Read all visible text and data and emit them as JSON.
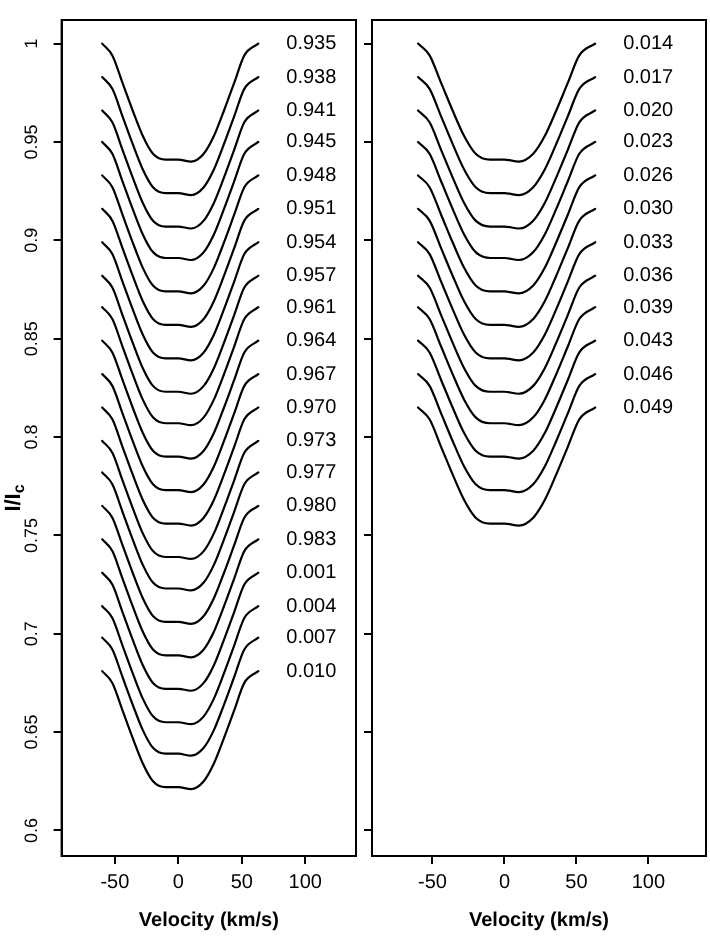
{
  "chart_data": [
    {
      "type": "line",
      "xlabel": "Velocity (km/s)",
      "ylabel": "I/I$_{c}$",
      "xlim": [
        -92,
        140
      ],
      "xticks": [
        -50,
        0,
        50,
        100
      ],
      "ylim": [
        0.587,
        1.012
      ],
      "yticks": [
        0.6,
        0.65,
        0.7,
        0.75,
        0.8,
        0.85,
        0.9,
        0.95,
        1
      ],
      "grid": false,
      "legend": "right",
      "marker": "none",
      "line_style": "solid",
      "x": [
        -60,
        -52,
        -44,
        -36,
        -28,
        -20,
        -10,
        0,
        10,
        20,
        28,
        36,
        44,
        52,
        63
      ],
      "series": [
        {
          "name": "0.935",
          "color": "#000000",
          "values": [
            1,
            0.994,
            0.98,
            0.966,
            0.953,
            0.944,
            0.941,
            0.941,
            0.94,
            0.944,
            0.953,
            0.966,
            0.98,
            0.994,
            1
          ]
        },
        {
          "name": "0.938",
          "color": "#000000",
          "values": [
            0.983,
            0.977,
            0.963,
            0.949,
            0.936,
            0.927,
            0.924,
            0.924,
            0.923,
            0.927,
            0.936,
            0.949,
            0.963,
            0.977,
            0.983
          ]
        },
        {
          "name": "0.941",
          "color": "#000000",
          "values": [
            0.966,
            0.96,
            0.946,
            0.932,
            0.919,
            0.91,
            0.907,
            0.907,
            0.906,
            0.91,
            0.919,
            0.932,
            0.946,
            0.96,
            0.966
          ]
        },
        {
          "name": "0.945",
          "color": "#000000",
          "values": [
            0.95,
            0.944,
            0.93,
            0.916,
            0.903,
            0.894,
            0.891,
            0.891,
            0.89,
            0.894,
            0.903,
            0.916,
            0.93,
            0.944,
            0.95
          ]
        },
        {
          "name": "0.948",
          "color": "#000000",
          "values": [
            0.933,
            0.927,
            0.913,
            0.899,
            0.886,
            0.877,
            0.874,
            0.874,
            0.873,
            0.877,
            0.886,
            0.899,
            0.913,
            0.927,
            0.933
          ]
        },
        {
          "name": "0.951",
          "color": "#000000",
          "values": [
            0.916,
            0.91,
            0.896,
            0.882,
            0.869,
            0.86,
            0.857,
            0.857,
            0.856,
            0.86,
            0.869,
            0.882,
            0.896,
            0.91,
            0.916
          ]
        },
        {
          "name": "0.954",
          "color": "#000000",
          "values": [
            0.899,
            0.893,
            0.879,
            0.865,
            0.852,
            0.843,
            0.84,
            0.84,
            0.839,
            0.843,
            0.852,
            0.865,
            0.879,
            0.893,
            0.899
          ]
        },
        {
          "name": "0.957",
          "color": "#000000",
          "values": [
            0.882,
            0.876,
            0.862,
            0.848,
            0.835,
            0.826,
            0.823,
            0.823,
            0.822,
            0.826,
            0.835,
            0.848,
            0.862,
            0.876,
            0.882
          ]
        },
        {
          "name": "0.961",
          "color": "#000000",
          "values": [
            0.866,
            0.86,
            0.846,
            0.832,
            0.819,
            0.81,
            0.807,
            0.807,
            0.806,
            0.81,
            0.819,
            0.832,
            0.846,
            0.86,
            0.866
          ]
        },
        {
          "name": "0.964",
          "color": "#000000",
          "values": [
            0.849,
            0.843,
            0.829,
            0.815,
            0.802,
            0.793,
            0.79,
            0.79,
            0.789,
            0.793,
            0.802,
            0.815,
            0.829,
            0.843,
            0.849
          ]
        },
        {
          "name": "0.967",
          "color": "#000000",
          "values": [
            0.832,
            0.826,
            0.812,
            0.798,
            0.785,
            0.776,
            0.773,
            0.773,
            0.772,
            0.776,
            0.785,
            0.798,
            0.812,
            0.826,
            0.832
          ]
        },
        {
          "name": "0.970",
          "color": "#000000",
          "values": [
            0.815,
            0.809,
            0.795,
            0.781,
            0.768,
            0.759,
            0.756,
            0.756,
            0.755,
            0.759,
            0.768,
            0.781,
            0.795,
            0.809,
            0.815
          ]
        },
        {
          "name": "0.973",
          "color": "#000000",
          "values": [
            0.798,
            0.792,
            0.778,
            0.764,
            0.751,
            0.742,
            0.739,
            0.739,
            0.738,
            0.742,
            0.751,
            0.764,
            0.778,
            0.792,
            0.798
          ]
        },
        {
          "name": "0.977",
          "color": "#000000",
          "values": [
            0.782,
            0.776,
            0.762,
            0.748,
            0.735,
            0.726,
            0.723,
            0.723,
            0.722,
            0.726,
            0.735,
            0.748,
            0.762,
            0.776,
            0.782
          ]
        },
        {
          "name": "0.980",
          "color": "#000000",
          "values": [
            0.765,
            0.759,
            0.745,
            0.731,
            0.718,
            0.709,
            0.706,
            0.706,
            0.705,
            0.709,
            0.718,
            0.731,
            0.745,
            0.759,
            0.765
          ]
        },
        {
          "name": "0.983",
          "color": "#000000",
          "values": [
            0.748,
            0.742,
            0.728,
            0.714,
            0.701,
            0.692,
            0.689,
            0.689,
            0.688,
            0.692,
            0.701,
            0.714,
            0.728,
            0.742,
            0.748
          ]
        },
        {
          "name": "0.001",
          "color": "#000000",
          "values": [
            0.731,
            0.725,
            0.711,
            0.697,
            0.684,
            0.675,
            0.672,
            0.672,
            0.671,
            0.675,
            0.684,
            0.697,
            0.711,
            0.725,
            0.731
          ]
        },
        {
          "name": "0.004",
          "color": "#000000",
          "values": [
            0.714,
            0.708,
            0.694,
            0.68,
            0.667,
            0.658,
            0.655,
            0.655,
            0.654,
            0.658,
            0.667,
            0.68,
            0.694,
            0.708,
            0.714
          ]
        },
        {
          "name": "0.007",
          "color": "#000000",
          "values": [
            0.698,
            0.692,
            0.678,
            0.664,
            0.651,
            0.642,
            0.639,
            0.639,
            0.638,
            0.642,
            0.651,
            0.664,
            0.678,
            0.692,
            0.698
          ]
        },
        {
          "name": "0.010",
          "color": "#000000",
          "values": [
            0.681,
            0.675,
            0.661,
            0.647,
            0.634,
            0.625,
            0.622,
            0.622,
            0.621,
            0.625,
            0.634,
            0.647,
            0.661,
            0.675,
            0.681
          ]
        }
      ]
    },
    {
      "type": "line",
      "xlabel": "Velocity (km/s)",
      "xlim": [
        -92,
        140
      ],
      "xticks": [
        -50,
        0,
        50,
        100
      ],
      "ylim": [
        0.587,
        1.012
      ],
      "yticks": [
        0.6,
        0.65,
        0.7,
        0.75,
        0.8,
        0.85,
        0.9,
        0.95,
        1
      ],
      "tick_labels": "x",
      "grid": false,
      "legend": "right",
      "marker": "none",
      "line_style": "solid",
      "x": [
        -60,
        -52,
        -44,
        -36,
        -28,
        -20,
        -10,
        0,
        10,
        20,
        28,
        36,
        44,
        52,
        63
      ],
      "series": [
        {
          "name": "0.014",
          "color": "#000000",
          "values": [
            1,
            0.994,
            0.98,
            0.966,
            0.953,
            0.944,
            0.941,
            0.941,
            0.94,
            0.944,
            0.953,
            0.966,
            0.98,
            0.994,
            1
          ]
        },
        {
          "name": "0.017",
          "color": "#000000",
          "values": [
            0.983,
            0.977,
            0.963,
            0.949,
            0.936,
            0.927,
            0.924,
            0.924,
            0.923,
            0.927,
            0.936,
            0.949,
            0.963,
            0.977,
            0.983
          ]
        },
        {
          "name": "0.020",
          "color": "#000000",
          "values": [
            0.966,
            0.96,
            0.946,
            0.932,
            0.919,
            0.91,
            0.907,
            0.907,
            0.906,
            0.91,
            0.919,
            0.932,
            0.946,
            0.96,
            0.966
          ]
        },
        {
          "name": "0.023",
          "color": "#000000",
          "values": [
            0.95,
            0.944,
            0.93,
            0.916,
            0.903,
            0.894,
            0.891,
            0.891,
            0.89,
            0.894,
            0.903,
            0.916,
            0.93,
            0.944,
            0.95
          ]
        },
        {
          "name": "0.026",
          "color": "#000000",
          "values": [
            0.933,
            0.927,
            0.913,
            0.899,
            0.886,
            0.877,
            0.874,
            0.874,
            0.873,
            0.877,
            0.886,
            0.899,
            0.913,
            0.927,
            0.933
          ]
        },
        {
          "name": "0.030",
          "color": "#000000",
          "values": [
            0.916,
            0.91,
            0.896,
            0.882,
            0.869,
            0.86,
            0.857,
            0.857,
            0.856,
            0.86,
            0.869,
            0.882,
            0.896,
            0.91,
            0.916
          ]
        },
        {
          "name": "0.033",
          "color": "#000000",
          "values": [
            0.899,
            0.893,
            0.879,
            0.865,
            0.852,
            0.843,
            0.84,
            0.84,
            0.839,
            0.843,
            0.852,
            0.865,
            0.879,
            0.893,
            0.899
          ]
        },
        {
          "name": "0.036",
          "color": "#000000",
          "values": [
            0.882,
            0.876,
            0.862,
            0.848,
            0.835,
            0.826,
            0.823,
            0.823,
            0.822,
            0.826,
            0.835,
            0.848,
            0.862,
            0.876,
            0.882
          ]
        },
        {
          "name": "0.039",
          "color": "#000000",
          "values": [
            0.866,
            0.86,
            0.846,
            0.832,
            0.819,
            0.81,
            0.807,
            0.807,
            0.806,
            0.81,
            0.819,
            0.832,
            0.846,
            0.86,
            0.866
          ]
        },
        {
          "name": "0.043",
          "color": "#000000",
          "values": [
            0.849,
            0.843,
            0.829,
            0.815,
            0.802,
            0.793,
            0.79,
            0.79,
            0.789,
            0.793,
            0.802,
            0.815,
            0.829,
            0.843,
            0.849
          ]
        },
        {
          "name": "0.046",
          "color": "#000000",
          "values": [
            0.832,
            0.826,
            0.812,
            0.798,
            0.785,
            0.776,
            0.773,
            0.773,
            0.772,
            0.776,
            0.785,
            0.798,
            0.812,
            0.826,
            0.832
          ]
        },
        {
          "name": "0.049",
          "color": "#000000",
          "values": [
            0.815,
            0.809,
            0.795,
            0.781,
            0.768,
            0.759,
            0.756,
            0.756,
            0.755,
            0.759,
            0.768,
            0.781,
            0.795,
            0.809,
            0.815
          ]
        }
      ]
    }
  ]
}
